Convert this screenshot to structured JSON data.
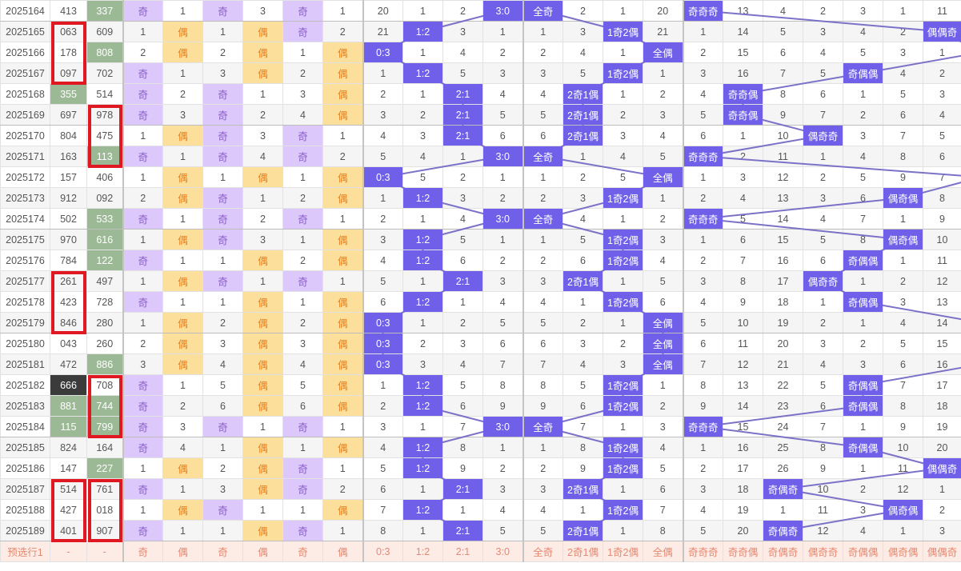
{
  "colors": {
    "highlight": "#6f5fe9",
    "line": "#7b72c8",
    "odd_bg": "#dcc8fa",
    "even_bg": "#fddf9c",
    "num_green": "#9cb996",
    "num_dark": "#3b3b3b",
    "red_box": "#e01822"
  },
  "rows": [
    {
      "period": "2025164",
      "n1": "413",
      "n2": "337",
      "n2s": "green",
      "cells": [
        "奇",
        "1",
        "奇",
        "3",
        "奇",
        "1",
        "20",
        "1",
        "2",
        "3:0",
        "全奇",
        "2",
        "1",
        "20",
        "奇奇奇",
        "13",
        "4",
        "2",
        "3",
        "1",
        "11"
      ]
    },
    {
      "period": "2025165",
      "n1": "063",
      "n2": "609",
      "cells": [
        "1",
        "偶",
        "1",
        "偶",
        "奇",
        "2",
        "21",
        "1:2",
        "3",
        "1",
        "1",
        "3",
        "1奇2偶",
        "21",
        "1",
        "14",
        "5",
        "3",
        "4",
        "2",
        "偶偶奇"
      ]
    },
    {
      "period": "2025166",
      "n1": "178",
      "n2": "808",
      "n2s": "green",
      "cells": [
        "2",
        "偶",
        "2",
        "偶",
        "1",
        "偶",
        "0:3",
        "1",
        "4",
        "2",
        "2",
        "4",
        "1",
        "全偶",
        "2",
        "15",
        "6",
        "4",
        "5",
        "3",
        "1"
      ]
    },
    {
      "period": "2025167",
      "n1": "097",
      "n2": "702",
      "cells": [
        "奇",
        "1",
        "3",
        "偶",
        "2",
        "偶",
        "1",
        "1:2",
        "5",
        "3",
        "3",
        "5",
        "1奇2偶",
        "1",
        "3",
        "16",
        "7",
        "5",
        "奇偶偶",
        "4",
        "2"
      ]
    },
    {
      "period": "2025168",
      "n1": "355",
      "n1s": "green",
      "n2": "514",
      "cells": [
        "奇",
        "2",
        "奇",
        "1",
        "3",
        "偶",
        "2",
        "1",
        "2:1",
        "4",
        "4",
        "2奇1偶",
        "1",
        "2",
        "4",
        "奇奇偶",
        "8",
        "6",
        "1",
        "5",
        "3"
      ]
    },
    {
      "period": "2025169",
      "n1": "697",
      "n2": "978",
      "cells": [
        "奇",
        "3",
        "奇",
        "2",
        "4",
        "偶",
        "3",
        "2",
        "2:1",
        "5",
        "5",
        "2奇1偶",
        "2",
        "3",
        "5",
        "奇奇偶",
        "9",
        "7",
        "2",
        "6",
        "4"
      ]
    },
    {
      "period": "2025170",
      "n1": "804",
      "n2": "475",
      "cells": [
        "1",
        "偶",
        "奇",
        "3",
        "奇",
        "1",
        "4",
        "3",
        "2:1",
        "6",
        "6",
        "2奇1偶",
        "3",
        "4",
        "6",
        "1",
        "10",
        "偶奇奇",
        "3",
        "7",
        "5"
      ]
    },
    {
      "period": "2025171",
      "n1": "163",
      "n2": "113",
      "n2s": "green",
      "cells": [
        "奇",
        "1",
        "奇",
        "4",
        "奇",
        "2",
        "5",
        "4",
        "1",
        "3:0",
        "全奇",
        "1",
        "4",
        "5",
        "奇奇奇",
        "2",
        "11",
        "1",
        "4",
        "8",
        "6"
      ]
    },
    {
      "period": "2025172",
      "n1": "157",
      "n2": "406",
      "cells": [
        "1",
        "偶",
        "1",
        "偶",
        "1",
        "偶",
        "0:3",
        "5",
        "2",
        "1",
        "1",
        "2",
        "5",
        "全偶",
        "1",
        "3",
        "12",
        "2",
        "5",
        "9",
        "7"
      ]
    },
    {
      "period": "2025173",
      "n1": "912",
      "n2": "092",
      "cells": [
        "2",
        "偶",
        "奇",
        "1",
        "2",
        "偶",
        "1",
        "1:2",
        "3",
        "2",
        "2",
        "3",
        "1奇2偶",
        "1",
        "2",
        "4",
        "13",
        "3",
        "6",
        "偶奇偶",
        "8"
      ]
    },
    {
      "period": "2025174",
      "n1": "502",
      "n2": "533",
      "n2s": "green",
      "cells": [
        "奇",
        "1",
        "奇",
        "2",
        "奇",
        "1",
        "2",
        "1",
        "4",
        "3:0",
        "全奇",
        "4",
        "1",
        "2",
        "奇奇奇",
        "5",
        "14",
        "4",
        "7",
        "1",
        "9"
      ]
    },
    {
      "period": "2025175",
      "n1": "970",
      "n2": "616",
      "n2s": "green",
      "cells": [
        "1",
        "偶",
        "奇",
        "3",
        "1",
        "偶",
        "3",
        "1:2",
        "5",
        "1",
        "1",
        "5",
        "1奇2偶",
        "3",
        "1",
        "6",
        "15",
        "5",
        "8",
        "偶奇偶",
        "10"
      ]
    },
    {
      "period": "2025176",
      "n1": "784",
      "n2": "122",
      "n2s": "green",
      "cells": [
        "奇",
        "1",
        "1",
        "偶",
        "2",
        "偶",
        "4",
        "1:2",
        "6",
        "2",
        "2",
        "6",
        "1奇2偶",
        "4",
        "2",
        "7",
        "16",
        "6",
        "奇偶偶",
        "1",
        "11"
      ]
    },
    {
      "period": "2025177",
      "n1": "261",
      "n2": "497",
      "cells": [
        "1",
        "偶",
        "奇",
        "1",
        "奇",
        "1",
        "5",
        "1",
        "2:1",
        "3",
        "3",
        "2奇1偶",
        "1",
        "5",
        "3",
        "8",
        "17",
        "偶奇奇",
        "1",
        "2",
        "12"
      ]
    },
    {
      "period": "2025178",
      "n1": "423",
      "n2": "728",
      "cells": [
        "奇",
        "1",
        "1",
        "偶",
        "1",
        "偶",
        "6",
        "1:2",
        "1",
        "4",
        "4",
        "1",
        "1奇2偶",
        "6",
        "4",
        "9",
        "18",
        "1",
        "奇偶偶",
        "3",
        "13"
      ]
    },
    {
      "period": "2025179",
      "n1": "846",
      "n2": "280",
      "cells": [
        "1",
        "偶",
        "2",
        "偶",
        "2",
        "偶",
        "0:3",
        "1",
        "2",
        "5",
        "5",
        "2",
        "1",
        "全偶",
        "5",
        "10",
        "19",
        "2",
        "1",
        "4",
        "14"
      ]
    },
    {
      "period": "2025180",
      "n1": "043",
      "n2": "260",
      "cells": [
        "2",
        "偶",
        "3",
        "偶",
        "3",
        "偶",
        "0:3",
        "2",
        "3",
        "6",
        "6",
        "3",
        "2",
        "全偶",
        "6",
        "11",
        "20",
        "3",
        "2",
        "5",
        "15"
      ]
    },
    {
      "period": "2025181",
      "n1": "472",
      "n2": "886",
      "n2s": "green",
      "cells": [
        "3",
        "偶",
        "4",
        "偶",
        "4",
        "偶",
        "0:3",
        "3",
        "4",
        "7",
        "7",
        "4",
        "3",
        "全偶",
        "7",
        "12",
        "21",
        "4",
        "3",
        "6",
        "16"
      ]
    },
    {
      "period": "2025182",
      "n1": "666",
      "n1s": "dark",
      "n2": "708",
      "cells": [
        "奇",
        "1",
        "5",
        "偶",
        "5",
        "偶",
        "1",
        "1:2",
        "5",
        "8",
        "8",
        "5",
        "1奇2偶",
        "1",
        "8",
        "13",
        "22",
        "5",
        "奇偶偶",
        "7",
        "17"
      ]
    },
    {
      "period": "2025183",
      "n1": "881",
      "n1s": "green",
      "n2": "744",
      "n2s": "green",
      "cells": [
        "奇",
        "2",
        "6",
        "偶",
        "6",
        "偶",
        "2",
        "1:2",
        "6",
        "9",
        "9",
        "6",
        "1奇2偶",
        "2",
        "9",
        "14",
        "23",
        "6",
        "奇偶偶",
        "8",
        "18"
      ]
    },
    {
      "period": "2025184",
      "n1": "115",
      "n1s": "green",
      "n2": "799",
      "n2s": "green",
      "cells": [
        "奇",
        "3",
        "奇",
        "1",
        "奇",
        "1",
        "3",
        "1",
        "7",
        "3:0",
        "全奇",
        "7",
        "1",
        "3",
        "奇奇奇",
        "15",
        "24",
        "7",
        "1",
        "9",
        "19"
      ]
    },
    {
      "period": "2025185",
      "n1": "824",
      "n2": "164",
      "cells": [
        "奇",
        "4",
        "1",
        "偶",
        "1",
        "偶",
        "4",
        "1:2",
        "8",
        "1",
        "1",
        "8",
        "1奇2偶",
        "4",
        "1",
        "16",
        "25",
        "8",
        "奇偶偶",
        "10",
        "20"
      ]
    },
    {
      "period": "2025186",
      "n1": "147",
      "n2": "227",
      "n2s": "green",
      "cells": [
        "1",
        "偶",
        "2",
        "偶",
        "奇",
        "1",
        "5",
        "1:2",
        "9",
        "2",
        "2",
        "9",
        "1奇2偶",
        "5",
        "2",
        "17",
        "26",
        "9",
        "1",
        "11",
        "偶偶奇"
      ]
    },
    {
      "period": "2025187",
      "n1": "514",
      "n2": "761",
      "cells": [
        "奇",
        "1",
        "3",
        "偶",
        "奇",
        "2",
        "6",
        "1",
        "2:1",
        "3",
        "3",
        "2奇1偶",
        "1",
        "6",
        "3",
        "18",
        "奇偶奇",
        "10",
        "2",
        "12",
        "1"
      ]
    },
    {
      "period": "2025188",
      "n1": "427",
      "n2": "018",
      "cells": [
        "1",
        "偶",
        "奇",
        "1",
        "1",
        "偶",
        "7",
        "1:2",
        "1",
        "4",
        "4",
        "1",
        "1奇2偶",
        "7",
        "4",
        "19",
        "1",
        "11",
        "3",
        "偶奇偶",
        "2"
      ]
    },
    {
      "period": "2025189",
      "n1": "401",
      "n2": "907",
      "cells": [
        "奇",
        "1",
        "1",
        "偶",
        "奇",
        "1",
        "8",
        "1",
        "2:1",
        "5",
        "5",
        "2奇1偶",
        "1",
        "8",
        "5",
        "20",
        "奇偶奇",
        "12",
        "4",
        "1",
        "3"
      ]
    }
  ],
  "footer": {
    "period": "预选行1",
    "n1": "-",
    "n2": "-",
    "cells": [
      "奇",
      "偶",
      "奇",
      "偶",
      "奇",
      "偶",
      "0:3",
      "1:2",
      "2:1",
      "3:0",
      "全奇",
      "2奇1偶",
      "1奇2偶",
      "全偶",
      "奇奇奇",
      "奇奇偶",
      "奇偶奇",
      "偶奇奇",
      "奇偶偶",
      "偶奇偶",
      "偶偶奇"
    ]
  },
  "red_boxes": [
    {
      "col": "n1",
      "from": "2025165",
      "to": "2025167"
    },
    {
      "col": "n2",
      "from": "2025169",
      "to": "2025171"
    },
    {
      "col": "n1",
      "from": "2025177",
      "to": "2025179"
    },
    {
      "col": "n2",
      "from": "2025182",
      "to": "2025184"
    },
    {
      "col": "n1",
      "from": "2025187",
      "to": "2025189"
    },
    {
      "col": "n2",
      "from": "2025187",
      "to": "2025189"
    }
  ]
}
